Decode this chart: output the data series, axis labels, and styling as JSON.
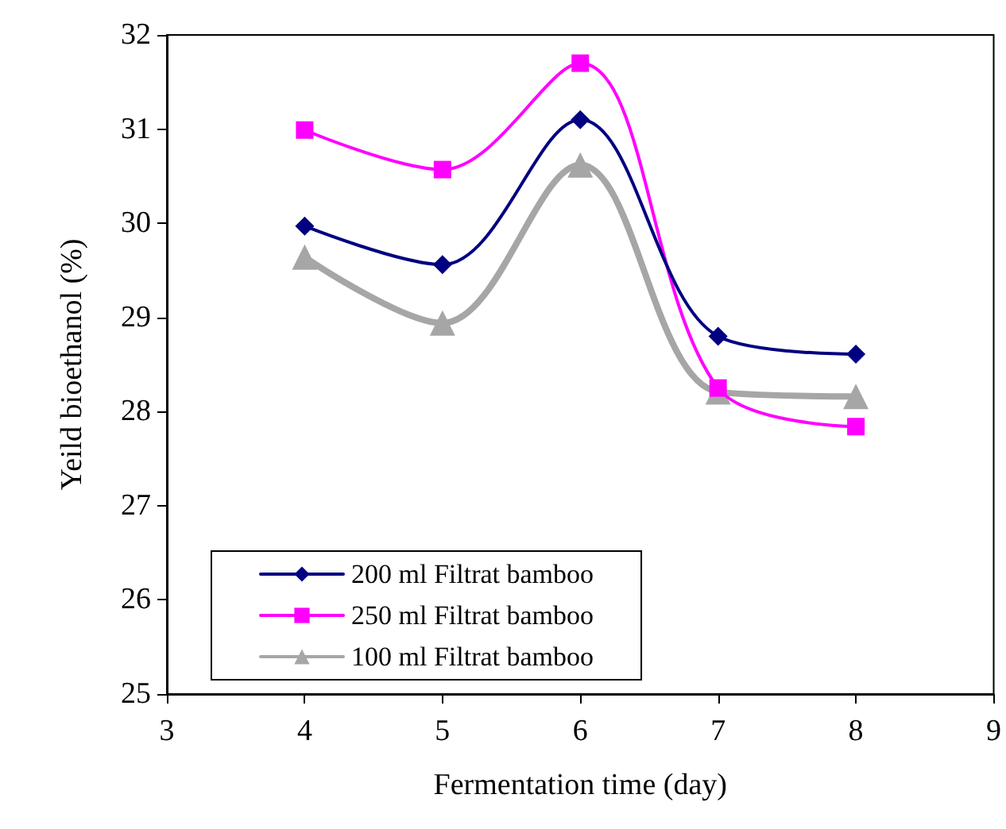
{
  "chart_data": {
    "type": "line",
    "xlabel": "Fermentation time (day)",
    "ylabel": "Yeild bioethanol (%)",
    "x": [
      4,
      5,
      6,
      7,
      8
    ],
    "series": [
      {
        "name": "200 ml Filtrat bamboo",
        "color": "#000080",
        "marker": "diamond",
        "values": [
          29.97,
          29.56,
          31.1,
          28.8,
          28.61
        ]
      },
      {
        "name": "250 ml Filtrat bamboo",
        "color": "#ff00ff",
        "marker": "square",
        "values": [
          30.99,
          30.57,
          31.7,
          28.25,
          27.84
        ]
      },
      {
        "name": "100 ml Filtrat bamboo",
        "color": "#a6a6a6",
        "marker": "triangle",
        "values": [
          29.64,
          28.94,
          30.62,
          28.21,
          28.16
        ]
      }
    ],
    "xlim": [
      3,
      9
    ],
    "xticks": [
      3,
      4,
      5,
      6,
      7,
      8,
      9
    ],
    "ylim": [
      25,
      32
    ],
    "yticks": [
      25,
      26,
      27,
      28,
      29,
      30,
      31,
      32
    ],
    "grid": false,
    "legend": "bottom left"
  }
}
